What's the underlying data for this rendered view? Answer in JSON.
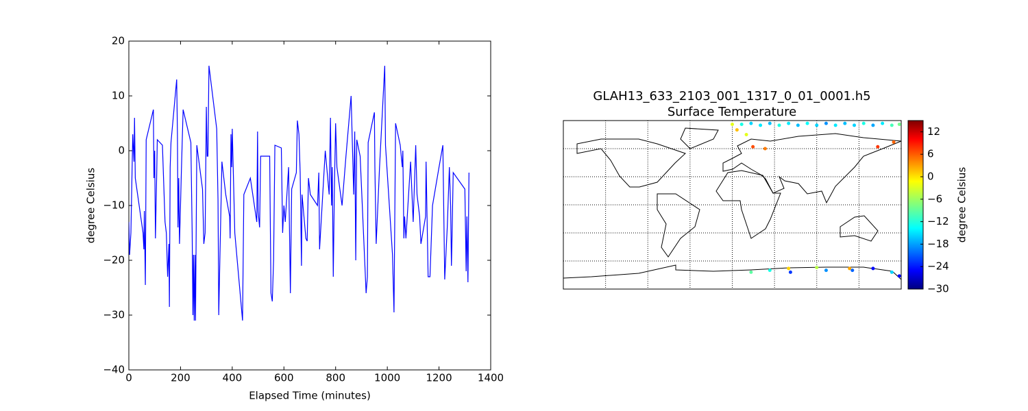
{
  "chart_data": [
    {
      "type": "line",
      "xlabel": "Elapsed Time (minutes)",
      "ylabel": "degree Celsius",
      "color": "#0000ff",
      "xlim": [
        0,
        1400
      ],
      "xticks": [
        0,
        200,
        400,
        600,
        800,
        1000,
        1200,
        1400
      ],
      "ylim": [
        -40,
        20
      ],
      "yticks": [
        {
          "value": -40,
          "label": "−40"
        },
        {
          "value": -30,
          "label": "−30"
        },
        {
          "value": -20,
          "label": "−20"
        },
        {
          "value": -10,
          "label": "−10"
        },
        0,
        10,
        20
      ],
      "x": [
        0,
        3,
        8,
        12,
        15,
        20,
        22,
        25,
        55,
        58,
        60,
        64,
        67,
        95,
        97,
        100,
        103,
        108,
        110,
        130,
        140,
        145,
        150,
        155,
        157,
        160,
        163,
        185,
        188,
        190,
        193,
        196,
        200,
        203,
        210,
        240,
        245,
        248,
        250,
        253,
        256,
        258,
        263,
        285,
        290,
        295,
        300,
        303,
        306,
        310,
        340,
        345,
        348,
        352,
        360,
        375,
        390,
        392,
        395,
        398,
        400,
        410,
        440,
        445,
        470,
        495,
        498,
        500,
        506,
        510,
        545,
        550,
        555,
        560,
        565,
        590,
        595,
        600,
        605,
        618,
        625,
        630,
        648,
        652,
        658,
        663,
        668,
        670,
        685,
        690,
        695,
        702,
        730,
        735,
        738,
        760,
        775,
        780,
        784,
        787,
        791,
        795,
        800,
        805,
        825,
        840,
        860,
        870,
        874,
        878,
        882,
        895,
        918,
        923,
        926,
        950,
        952,
        957,
        970,
        990,
        993,
        1020,
        1026,
        1032,
        1050,
        1058,
        1060,
        1064,
        1067,
        1072,
        1090,
        1100,
        1110,
        1115,
        1125,
        1130,
        1148,
        1150,
        1158,
        1165,
        1175,
        1200,
        1215,
        1222,
        1232,
        1240,
        1245,
        1248,
        1250,
        1255,
        1300,
        1305,
        1308,
        1312,
        1316
      ],
      "values": [
        -13,
        -19,
        -15,
        -5,
        3,
        -2,
        6,
        -5,
        -15,
        -18,
        -11,
        -24.5,
        2,
        7.5,
        -5,
        0,
        -16,
        -4,
        2,
        1,
        -13,
        -15,
        -23,
        -17,
        -28.5,
        -3,
        1.5,
        13,
        3,
        -14,
        -5,
        -17,
        -10,
        -4,
        7.5,
        1.5,
        -15,
        -30,
        -19,
        -31,
        -19,
        -31,
        1,
        -7,
        -17,
        -15,
        8,
        -1,
        -1,
        15.5,
        4,
        -9,
        -30,
        -20,
        -2,
        -8,
        -12,
        -16,
        3,
        -3,
        4,
        -15,
        -31,
        -8,
        -5,
        -13,
        3.5,
        -11,
        -14,
        -1,
        -1,
        -26,
        -27.5,
        -20,
        1,
        0.5,
        -15,
        -10,
        -13,
        -3,
        -26,
        -7,
        -4,
        5.5,
        3,
        -4,
        -21,
        -8,
        -16,
        -16.5,
        -5,
        -8,
        -10,
        -4,
        -18,
        0,
        -8,
        6,
        -10,
        -3,
        -23,
        -8,
        5,
        -3,
        -10,
        -1,
        10,
        -8,
        3.5,
        -20,
        2,
        -1,
        -26,
        -23,
        1.5,
        7,
        -3,
        -17,
        -3,
        15.5,
        1,
        -19,
        -29.5,
        5,
        1,
        -3,
        0,
        -16,
        -12,
        -16,
        -2,
        -13,
        1,
        -8,
        -12,
        -17,
        -12,
        -2,
        -23,
        -23,
        -10,
        -3,
        1,
        -23.5,
        -14,
        -3,
        -10,
        -21,
        -17,
        -4,
        -7,
        -22,
        -12,
        -24,
        -4
      ]
    },
    {
      "type": "map-scatter",
      "title": "GLAH13_633_2103_001_1317_0_01_0001.h5",
      "subtitle": "Surface Temperature",
      "colorbar_label": "degree Celsius",
      "xlim": [
        -180,
        180
      ],
      "ylim": [
        -90,
        90
      ],
      "clim": [
        -30,
        15
      ],
      "cticks": [
        {
          "value": -30,
          "label": "−30"
        },
        {
          "value": -24,
          "label": "−24"
        },
        {
          "value": -18,
          "label": "−18"
        },
        {
          "value": -12,
          "label": "−12"
        },
        {
          "value": -6,
          "label": "−6"
        },
        0,
        6,
        12
      ],
      "x": [
        0,
        5,
        10,
        20,
        30,
        40,
        50,
        60,
        70,
        80,
        90,
        100,
        110,
        120,
        130,
        140,
        150,
        160,
        170,
        178,
        15,
        22,
        35,
        155,
        172,
        20,
        40,
        60,
        62,
        90,
        100,
        125,
        128,
        150,
        170,
        178
      ],
      "y": [
        86,
        80,
        86,
        87,
        85,
        87,
        85,
        87,
        85,
        87,
        85,
        87,
        85,
        87,
        85,
        87,
        85,
        87,
        85,
        86,
        75,
        62,
        60,
        62,
        67,
        -72,
        -70,
        -68,
        -72,
        -67,
        -70,
        -68,
        -70,
        -68,
        -72,
        -76
      ],
      "values": [
        -3,
        1,
        -12,
        -15,
        -14,
        -16,
        -12,
        -14,
        -16,
        -13,
        -15,
        -18,
        -14,
        -16,
        -15,
        -12,
        -17,
        -14,
        -10,
        -8,
        -3,
        6,
        4,
        7,
        5,
        -9,
        -12,
        0,
        -22,
        -5,
        -18,
        2,
        -20,
        -24,
        -15,
        -24
      ]
    }
  ]
}
